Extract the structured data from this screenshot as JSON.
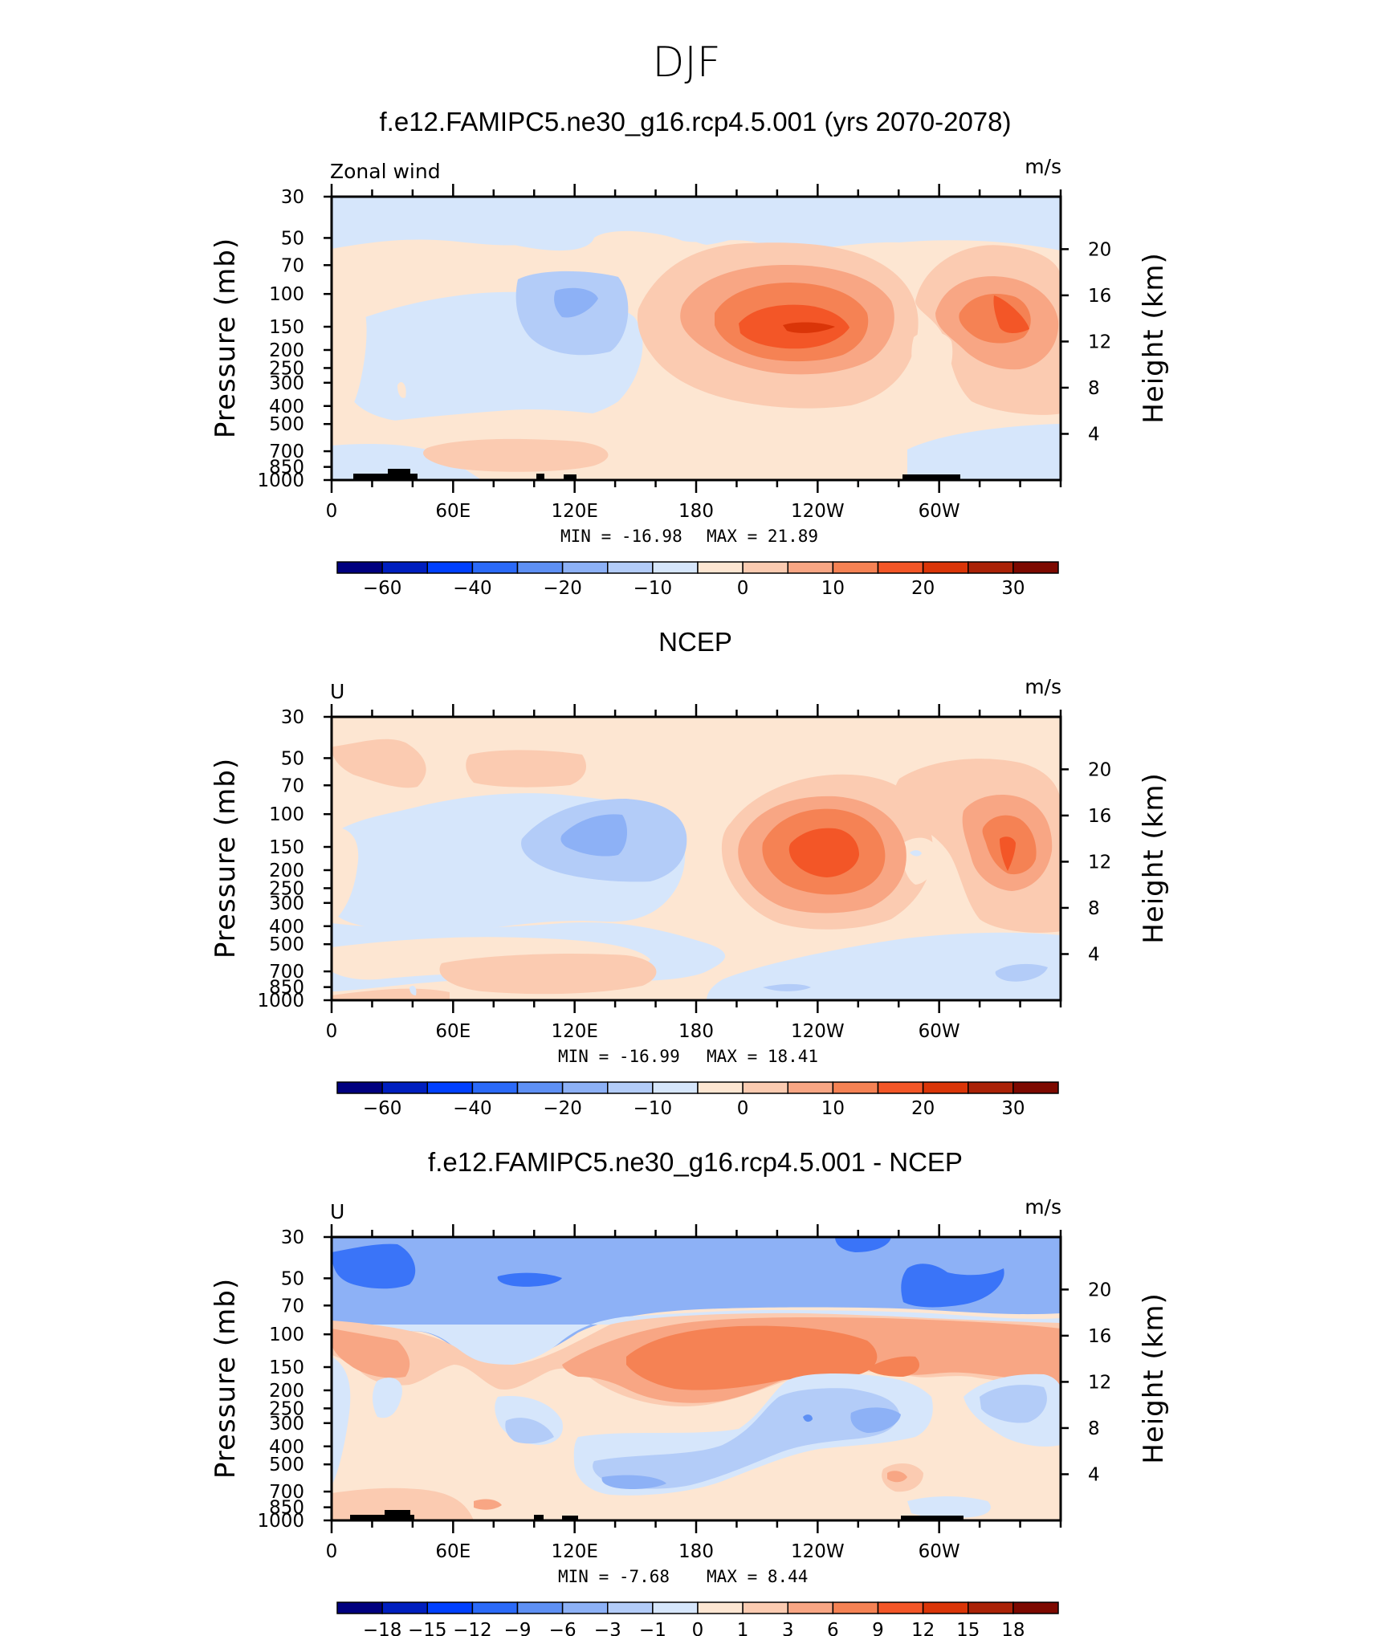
{
  "figure": {
    "title": "DJF",
    "colors": {
      "abs_levels": [
        "#00007f",
        "#001fbf",
        "#0040ff",
        "#2b6af8",
        "#5e90f4",
        "#8db1f6",
        "#b3ccf8",
        "#d6e6fb",
        "#fde6d2",
        "#fbcbb1",
        "#f8a684",
        "#f58254",
        "#f35627",
        "#da3508",
        "#aa2207",
        "#7d0900"
      ],
      "diff_levels": [
        "#00007f",
        "#001fbf",
        "#0040ff",
        "#2b6af8",
        "#5e90f4",
        "#8db1f6",
        "#b3ccf8",
        "#d6e6fb",
        "#fde6d2",
        "#fbcbb1",
        "#f8a684",
        "#f58254",
        "#f35627",
        "#da3508",
        "#aa2207",
        "#7d0900"
      ],
      "topography": "#000000"
    }
  },
  "chart_data": [
    {
      "type": "heatmap",
      "title": "f.e12.FAMIPC5.ne30_g16.rcp4.5.001 (yrs 2070-2078)",
      "left_label": "Zonal wind",
      "units": "m/s",
      "xlabel": "",
      "ylabel": "Pressure (mb)",
      "ylabel_right": "Height (km)",
      "x_ticks": [
        "0",
        "60E",
        "120E",
        "180",
        "120W",
        "60W"
      ],
      "y_ticks": [
        "30",
        "50",
        "70",
        "100",
        "150",
        "200",
        "250",
        "300",
        "400",
        "500",
        "700",
        "850",
        "1000"
      ],
      "y_right_ticks": [
        "20",
        "16",
        "12",
        "8",
        "4"
      ],
      "xlim": [
        0,
        360
      ],
      "ylim": [
        1000,
        30
      ],
      "log_scale_y": true,
      "min_label": "MIN = -16.98",
      "max_label": "MAX = 21.89",
      "min": -16.98,
      "max": 21.89,
      "colorbar_labels": [
        "-60",
        "-40",
        "-20",
        "-10",
        "0",
        "10",
        "20",
        "30"
      ],
      "features": [
        {
          "kind": "jet",
          "lon": 240,
          "p": 150,
          "peak": 21.9
        },
        {
          "kind": "jet",
          "lon": 330,
          "p": 150,
          "peak": 15
        },
        {
          "kind": "easterly",
          "lon": 115,
          "p": 110,
          "peak": -14
        },
        {
          "kind": "westerly_low",
          "lon": 130,
          "p": 780,
          "peak": 4
        }
      ]
    },
    {
      "type": "heatmap",
      "title": "NCEP",
      "left_label": "U",
      "units": "m/s",
      "xlabel": "",
      "ylabel": "Pressure (mb)",
      "ylabel_right": "Height (km)",
      "x_ticks": [
        "0",
        "60E",
        "120E",
        "180",
        "120W",
        "60W"
      ],
      "y_ticks": [
        "30",
        "50",
        "70",
        "100",
        "150",
        "200",
        "250",
        "300",
        "400",
        "500",
        "700",
        "850",
        "1000"
      ],
      "y_right_ticks": [
        "20",
        "16",
        "12",
        "8",
        "4"
      ],
      "xlim": [
        0,
        360
      ],
      "ylim": [
        1000,
        30
      ],
      "log_scale_y": true,
      "min_label": "MIN = -16.99",
      "max_label": "MAX = 18.41",
      "min": -16.99,
      "max": 18.41,
      "colorbar_labels": [
        "-60",
        "-40",
        "-20",
        "-10",
        "0",
        "10",
        "20",
        "30"
      ],
      "features": [
        {
          "kind": "jet",
          "lon": 232,
          "p": 170,
          "peak": 18.4
        },
        {
          "kind": "jet",
          "lon": 332,
          "p": 160,
          "peak": 15
        },
        {
          "kind": "easterly",
          "lon": 130,
          "p": 140,
          "peak": -15
        }
      ]
    },
    {
      "type": "heatmap",
      "title": "f.e12.FAMIPC5.ne30_g16.rcp4.5.001 - NCEP",
      "left_label": "U",
      "units": "m/s",
      "xlabel": "",
      "ylabel": "Pressure (mb)",
      "ylabel_right": "Height (km)",
      "x_ticks": [
        "0",
        "60E",
        "120E",
        "180",
        "120W",
        "60W"
      ],
      "y_ticks": [
        "30",
        "50",
        "70",
        "100",
        "150",
        "200",
        "250",
        "300",
        "400",
        "500",
        "700",
        "850",
        "1000"
      ],
      "y_right_ticks": [
        "20",
        "16",
        "12",
        "8",
        "4"
      ],
      "xlim": [
        0,
        360
      ],
      "ylim": [
        1000,
        30
      ],
      "log_scale_y": true,
      "min_label": "MIN = -7.68",
      "max_label": "MAX = 8.44",
      "min": -7.68,
      "max": 8.44,
      "colorbar_labels": [
        "-18",
        "-15",
        "-12",
        "-9",
        "-6",
        "-3",
        "-1",
        "0",
        "1",
        "3",
        "6",
        "9",
        "12",
        "15",
        "18"
      ],
      "features": [
        {
          "kind": "positive",
          "lon": 180,
          "p": 130,
          "peak": 8.4
        },
        {
          "kind": "negative",
          "lon": 25,
          "p": 45,
          "peak": -7.7
        },
        {
          "kind": "negative",
          "lon": 245,
          "p": 300,
          "peak": -4
        }
      ]
    }
  ]
}
